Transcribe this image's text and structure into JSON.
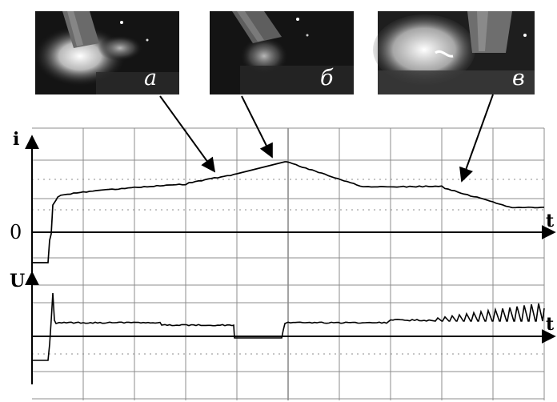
{
  "photos": [
    {
      "label": "а"
    },
    {
      "label": "б"
    },
    {
      "label": "в"
    }
  ],
  "top_plot": {
    "y_axis_label": "i",
    "x_axis_label": "t",
    "zero_label": "0"
  },
  "bottom_plot": {
    "y_axis_label": "U",
    "x_axis_label": "t"
  },
  "colors": {
    "trace": "#000000",
    "grid": "#8c8c8c",
    "photo_bg": "#141414"
  }
}
